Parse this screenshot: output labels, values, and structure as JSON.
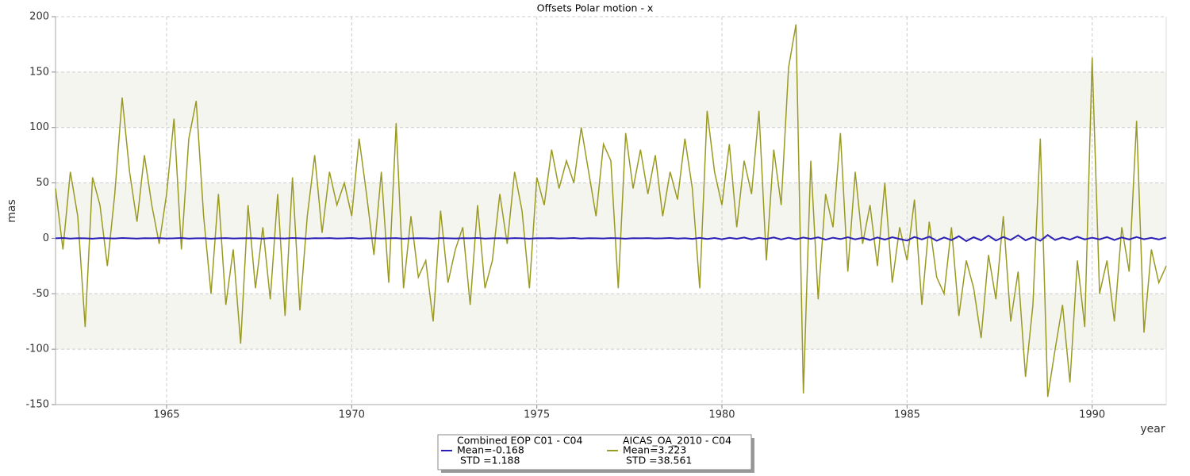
{
  "chart_data": {
    "type": "line",
    "title": "Offsets Polar motion - x",
    "xlabel": "year",
    "ylabel": "mas",
    "xlim": [
      1962,
      1992
    ],
    "xticks": [
      1965,
      1970,
      1975,
      1980,
      1985,
      1990
    ],
    "ylim": [
      -150,
      200
    ],
    "yticks": [
      -150,
      -100,
      -50,
      0,
      50,
      100,
      150,
      200
    ],
    "grid": true,
    "x": [
      1962.0,
      1962.2,
      1962.4,
      1962.6,
      1962.8,
      1963.0,
      1963.2,
      1963.4,
      1963.6,
      1963.8,
      1964.0,
      1964.2,
      1964.4,
      1964.6,
      1964.8,
      1965.0,
      1965.2,
      1965.4,
      1965.6,
      1965.8,
      1966.0,
      1966.2,
      1966.4,
      1966.6,
      1966.8,
      1967.0,
      1967.2,
      1967.4,
      1967.6,
      1967.8,
      1968.0,
      1968.2,
      1968.4,
      1968.6,
      1968.8,
      1969.0,
      1969.2,
      1969.4,
      1969.6,
      1969.8,
      1970.0,
      1970.2,
      1970.4,
      1970.6,
      1970.8,
      1971.0,
      1971.2,
      1971.4,
      1971.6,
      1971.8,
      1972.0,
      1972.2,
      1972.4,
      1972.6,
      1972.8,
      1973.0,
      1973.2,
      1973.4,
      1973.6,
      1973.8,
      1974.0,
      1974.2,
      1974.4,
      1974.6,
      1974.8,
      1975.0,
      1975.2,
      1975.4,
      1975.6,
      1975.8,
      1976.0,
      1976.2,
      1976.4,
      1976.6,
      1976.8,
      1977.0,
      1977.2,
      1977.4,
      1977.6,
      1977.8,
      1978.0,
      1978.2,
      1978.4,
      1978.6,
      1978.8,
      1979.0,
      1979.2,
      1979.4,
      1979.6,
      1979.8,
      1980.0,
      1980.2,
      1980.4,
      1980.6,
      1980.8,
      1981.0,
      1981.2,
      1981.4,
      1981.6,
      1981.8,
      1982.0,
      1982.2,
      1982.4,
      1982.6,
      1982.8,
      1983.0,
      1983.2,
      1983.4,
      1983.6,
      1983.8,
      1984.0,
      1984.2,
      1984.4,
      1984.6,
      1984.8,
      1985.0,
      1985.2,
      1985.4,
      1985.6,
      1985.8,
      1986.0,
      1986.2,
      1986.4,
      1986.6,
      1986.8,
      1987.0,
      1987.2,
      1987.4,
      1987.6,
      1987.8,
      1988.0,
      1988.2,
      1988.4,
      1988.6,
      1988.8,
      1989.0,
      1989.2,
      1989.4,
      1989.6,
      1989.8,
      1990.0,
      1990.2,
      1990.4,
      1990.6,
      1990.8,
      1991.0,
      1991.2,
      1991.4,
      1991.6,
      1991.8,
      1992.0
    ],
    "series": [
      {
        "name": "Combined EOP C01 - C04",
        "color": "#2a1fb5",
        "stats": [
          "Mean=-0.168",
          "STD =1.188"
        ],
        "values": [
          0,
          0.3,
          -0.2,
          0.1,
          0,
          -0.3,
          0.2,
          0,
          -0.1,
          0.3,
          0,
          -0.2,
          0.1,
          0,
          0.2,
          -0.1,
          0,
          0.3,
          -0.2,
          0,
          0.1,
          -0.3,
          0,
          0.2,
          -0.1,
          0,
          0.1,
          0,
          -0.2,
          0.2,
          0,
          -0.1,
          0.3,
          0,
          -0.2,
          0.1,
          0,
          0.2,
          -0.1,
          0,
          0.3,
          -0.2,
          0,
          0.1,
          -0.1,
          0,
          0.2,
          -0.3,
          0,
          0.1,
          0,
          -0.2,
          0.2,
          0,
          -0.1,
          0.1,
          0,
          0.3,
          -0.2,
          0,
          0.1,
          -0.1,
          0.2,
          0,
          -0.3,
          0.1,
          0,
          0.2,
          -0.1,
          0,
          0.3,
          -0.2,
          0.1,
          0,
          -0.1,
          0.2,
          0,
          -0.3,
          0.1,
          0,
          0.2,
          -0.1,
          0,
          0.3,
          -0.2,
          0.1,
          -0.5,
          0.4,
          -0.6,
          0.3,
          -0.8,
          0.5,
          -0.4,
          0.7,
          -0.9,
          0.5,
          -0.6,
          0.8,
          -1.0,
          0.6,
          -0.8,
          0.7,
          -0.5,
          0.9,
          -1.2,
          0.6,
          -0.7,
          1.0,
          -0.9,
          0.5,
          -1.5,
          0.8,
          -1.2,
          1.0,
          -0.6,
          -2.0,
          1.2,
          -1.0,
          1.5,
          -2.2,
          0.8,
          -1.6,
          2.0,
          -2.5,
          1.0,
          -1.8,
          2.5,
          -2.0,
          1.2,
          -1.5,
          2.8,
          -1.8,
          1.0,
          -2.2,
          3.0,
          -1.5,
          0.8,
          -1.2,
          1.5,
          -1.0,
          0.6,
          -0.9,
          1.2,
          -1.5,
          0.8,
          -1.0,
          1.2,
          -0.8,
          0.5,
          -1.0,
          0.7
        ]
      },
      {
        "name": "AICAS_OA_2010 - C04",
        "color": "#9a9a22",
        "stats": [
          "Mean=3.223",
          "STD =38.561"
        ],
        "values": [
          45,
          -10,
          60,
          20,
          -80,
          55,
          30,
          -25,
          40,
          127,
          60,
          15,
          75,
          30,
          -5,
          40,
          108,
          -10,
          90,
          124,
          20,
          -50,
          40,
          -60,
          -10,
          -95,
          30,
          -45,
          10,
          -55,
          40,
          -70,
          55,
          -65,
          20,
          75,
          5,
          60,
          30,
          50,
          20,
          90,
          40,
          -15,
          60,
          -40,
          104,
          -45,
          20,
          -35,
          -20,
          -75,
          25,
          -40,
          -10,
          10,
          -60,
          30,
          -45,
          -20,
          40,
          -5,
          60,
          25,
          -45,
          55,
          30,
          80,
          45,
          70,
          50,
          100,
          60,
          20,
          85,
          70,
          -45,
          95,
          45,
          80,
          40,
          75,
          20,
          60,
          35,
          90,
          45,
          -45,
          115,
          60,
          30,
          85,
          10,
          70,
          40,
          115,
          -20,
          80,
          30,
          154,
          193,
          -140,
          70,
          -55,
          40,
          10,
          95,
          -30,
          60,
          -5,
          30,
          -25,
          50,
          -40,
          10,
          -20,
          35,
          -60,
          15,
          -35,
          -50,
          10,
          -70,
          -20,
          -45,
          -90,
          -15,
          -55,
          20,
          -75,
          -30,
          -125,
          -60,
          90,
          -143,
          -100,
          -60,
          -130,
          -20,
          -80,
          163,
          -50,
          -20,
          -75,
          10,
          -30,
          106,
          -85,
          -10,
          -40,
          -25
        ]
      }
    ]
  }
}
